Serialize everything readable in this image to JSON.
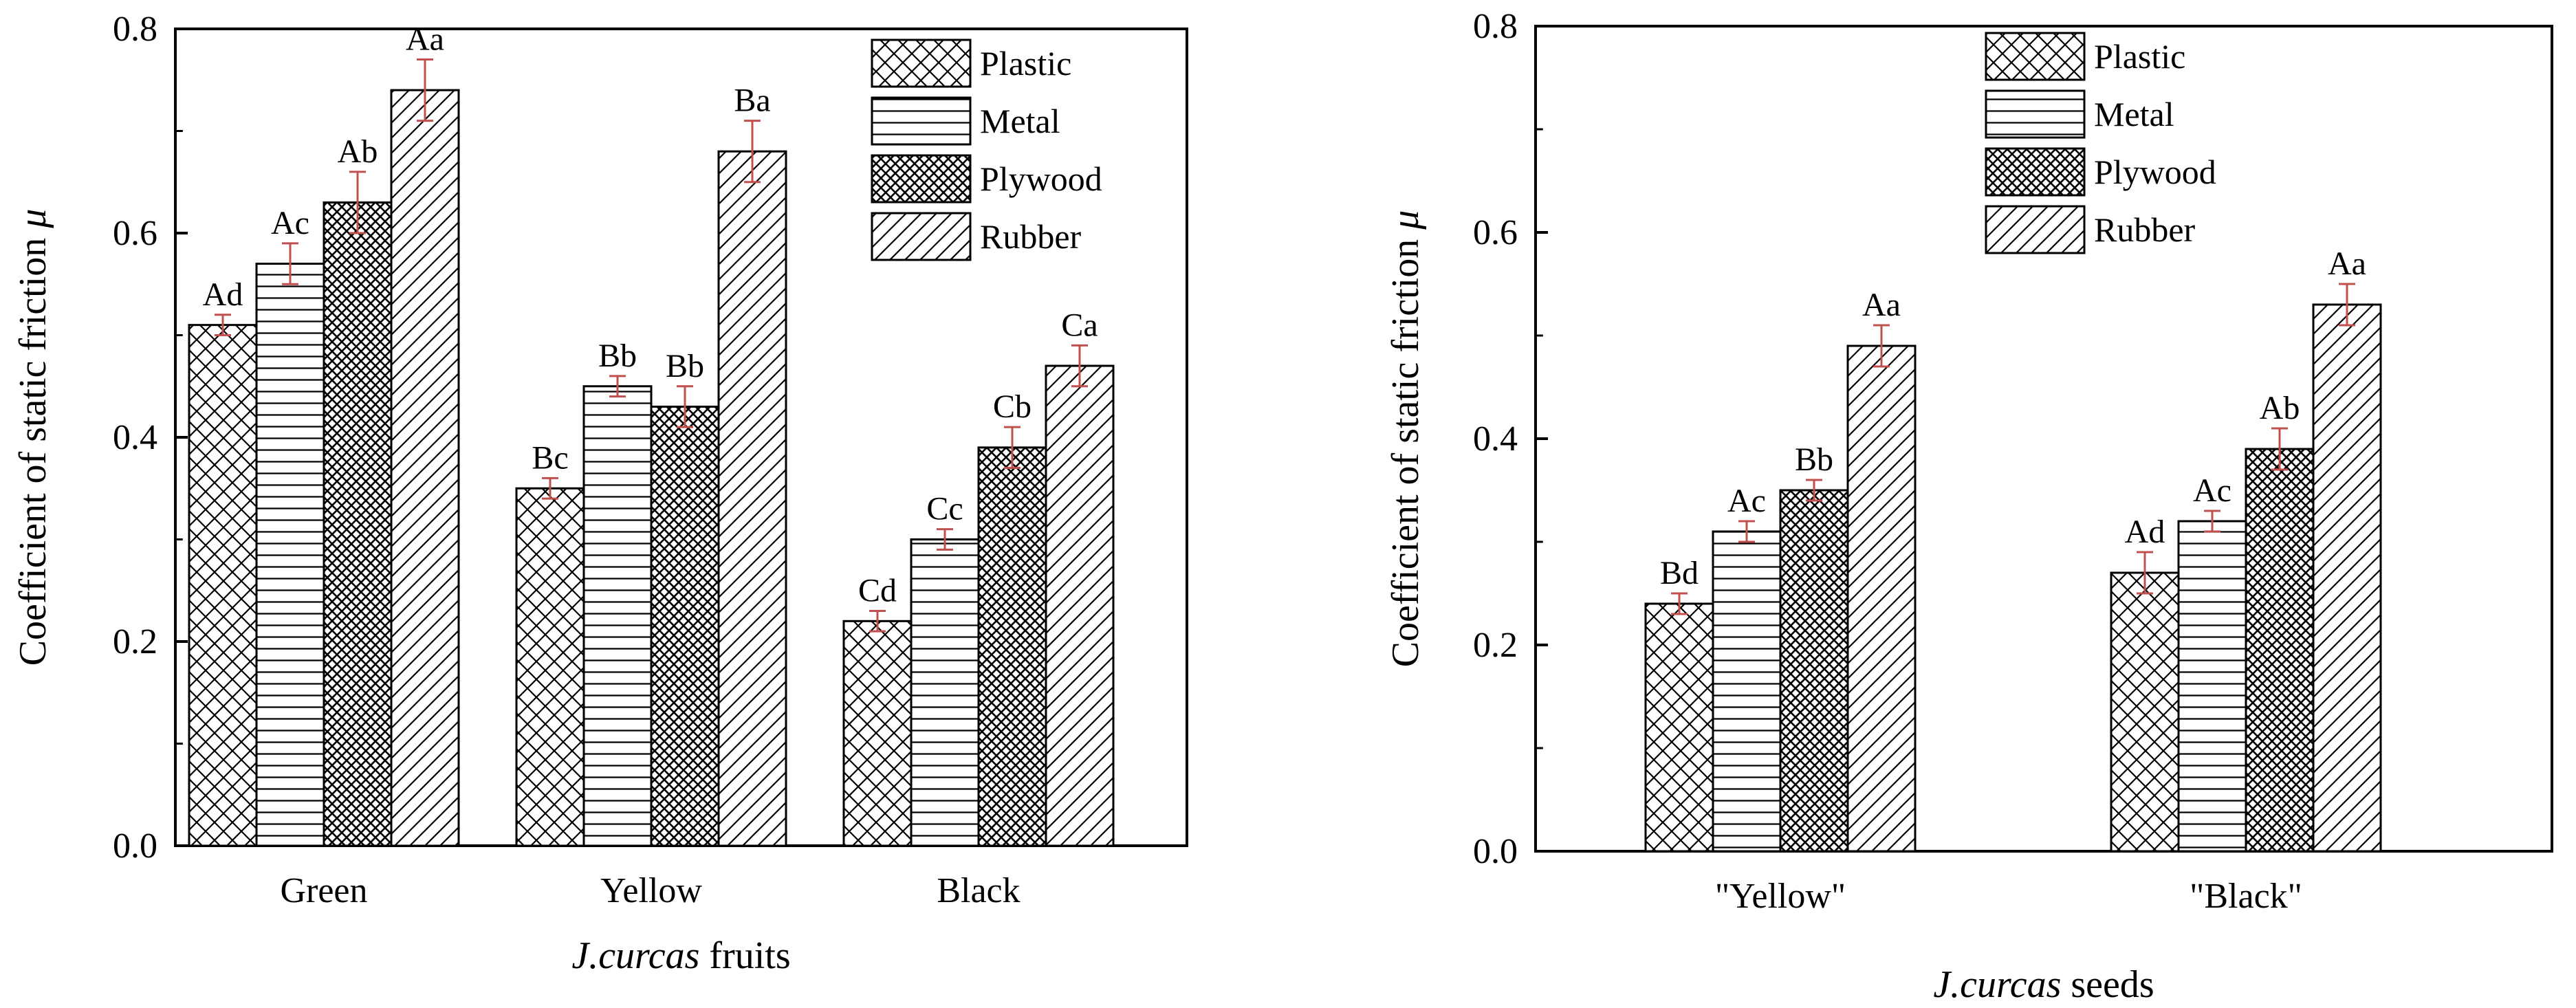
{
  "chart_data": [
    {
      "type": "bar",
      "categories": [
        "Green",
        "Yellow",
        "Black"
      ],
      "ylabel": "Coefficient of static friction μ",
      "xlabel": {
        "italic": "J.curcas",
        "rest": " fruits"
      },
      "ylim": [
        0,
        0.8
      ],
      "yticks": [
        "0.0",
        "0.2",
        "0.4",
        "0.6",
        "0.8"
      ],
      "legend_position": "top-right",
      "series": [
        {
          "name": "Plastic",
          "pattern": "crosshatch-diagonal",
          "values": [
            0.51,
            0.35,
            0.22
          ],
          "errors": [
            0.01,
            0.01,
            0.01
          ],
          "labels": [
            "Ad",
            "Bc",
            "Cd"
          ]
        },
        {
          "name": "Metal",
          "pattern": "horizontal",
          "values": [
            0.57,
            0.45,
            0.3
          ],
          "errors": [
            0.02,
            0.01,
            0.01
          ],
          "labels": [
            "Ac",
            "Bb",
            "Cc"
          ]
        },
        {
          "name": "Plywood",
          "pattern": "dense-crosshatch",
          "values": [
            0.63,
            0.43,
            0.39
          ],
          "errors": [
            0.03,
            0.02,
            0.02
          ],
          "labels": [
            "Ab",
            "Bb",
            "Cb"
          ]
        },
        {
          "name": "Rubber",
          "pattern": "diagonal",
          "values": [
            0.74,
            0.68,
            0.47
          ],
          "errors": [
            0.03,
            0.03,
            0.02
          ],
          "labels": [
            "Aa",
            "Ba",
            "Ca"
          ]
        }
      ]
    },
    {
      "type": "bar",
      "categories": [
        "\"Yellow\"",
        "\"Black\""
      ],
      "ylabel": "Coefficient of static friction μ",
      "xlabel": {
        "italic": "J.curcas",
        "rest": " seeds"
      },
      "ylim": [
        0,
        0.8
      ],
      "yticks": [
        "0.0",
        "0.2",
        "0.4",
        "0.6",
        "0.8"
      ],
      "legend_position": "top-center",
      "series": [
        {
          "name": "Plastic",
          "pattern": "crosshatch-diagonal",
          "values": [
            0.24,
            0.27
          ],
          "errors": [
            0.01,
            0.02
          ],
          "labels": [
            "Bd",
            "Ad"
          ]
        },
        {
          "name": "Metal",
          "pattern": "horizontal",
          "values": [
            0.31,
            0.32
          ],
          "errors": [
            0.01,
            0.01
          ],
          "labels": [
            "Ac",
            "Ac"
          ]
        },
        {
          "name": "Plywood",
          "pattern": "dense-crosshatch",
          "values": [
            0.35,
            0.39
          ],
          "errors": [
            0.01,
            0.02
          ],
          "labels": [
            "Bb",
            "Ab"
          ]
        },
        {
          "name": "Rubber",
          "pattern": "diagonal",
          "values": [
            0.49,
            0.53
          ],
          "errors": [
            0.02,
            0.02
          ],
          "labels": [
            "Aa",
            "Aa"
          ]
        }
      ]
    }
  ],
  "colors": {
    "error_bar": "#c0504d",
    "axis": "#000000",
    "bar_fill": "#ffffff"
  }
}
